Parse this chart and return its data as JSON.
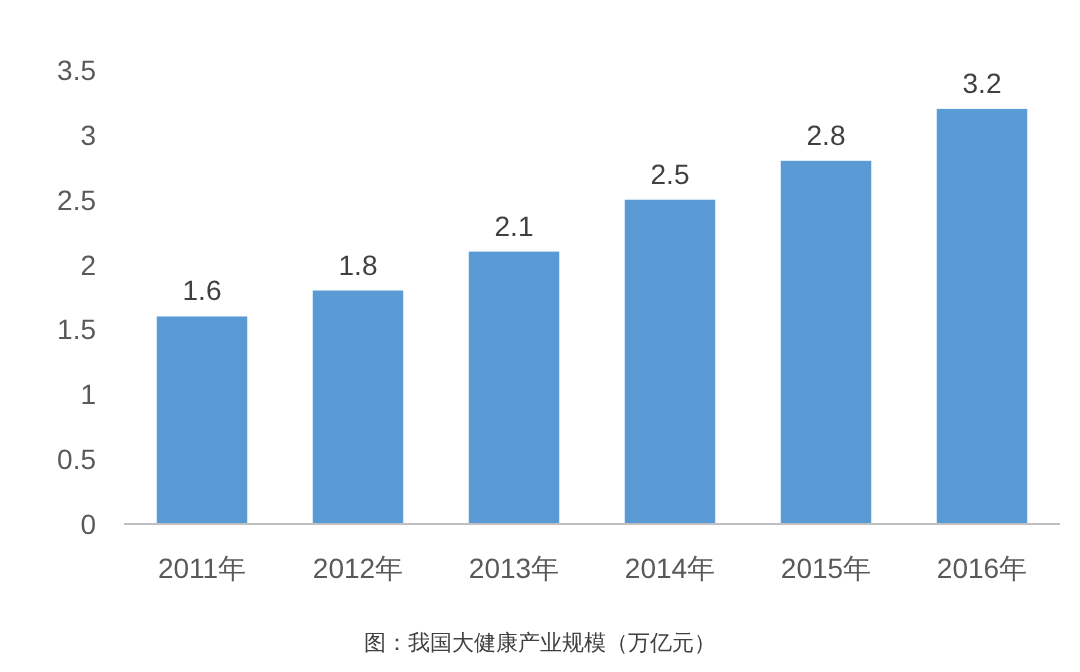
{
  "chart_data": {
    "type": "bar",
    "categories": [
      "2011年",
      "2012年",
      "2013年",
      "2014年",
      "2015年",
      "2016年"
    ],
    "values": [
      1.6,
      1.8,
      2.1,
      2.5,
      2.8,
      3.2
    ],
    "color": "#5b9bd5",
    "ylim": [
      0,
      3.5
    ],
    "yticks": [
      0,
      0.5,
      1,
      1.5,
      2,
      2.5,
      3,
      3.5
    ],
    "data_labels": true,
    "annotations": [
      "图：我国大健康产业规模（万亿元）"
    ]
  }
}
